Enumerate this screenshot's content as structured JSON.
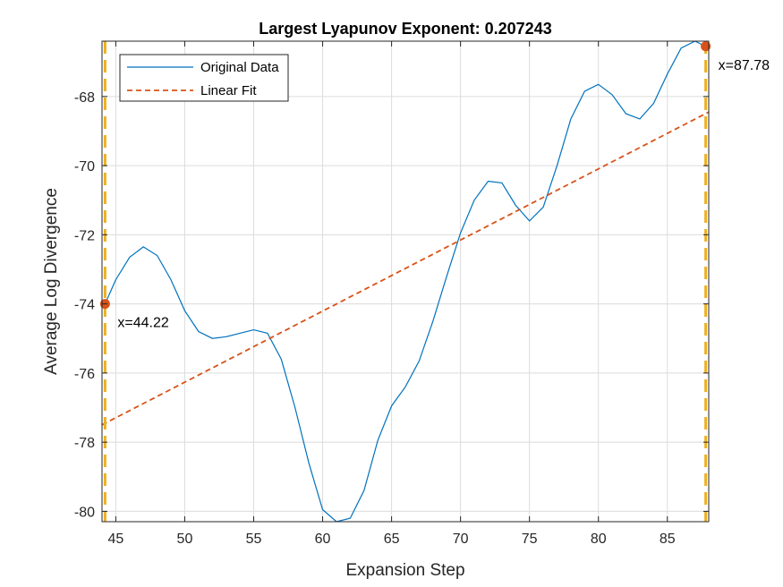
{
  "chart_data": {
    "type": "line",
    "title": "Largest Lyapunov Exponent: 0.207243",
    "xlabel": "Expansion Step",
    "ylabel": "Average Log Divergence",
    "xlim": [
      44,
      88
    ],
    "ylim": [
      -80.3,
      -66.4
    ],
    "xticks": [
      45,
      50,
      55,
      60,
      65,
      70,
      75,
      80,
      85
    ],
    "yticks": [
      -68,
      -70,
      -72,
      -74,
      -76,
      -78,
      -80
    ],
    "grid": true,
    "legend_position": "top-left",
    "series": [
      {
        "name": "Original Data",
        "color": "#0072BD",
        "style": "solid",
        "x": [
          44.22,
          45,
          46,
          47,
          48,
          49,
          50,
          51,
          52,
          53,
          54,
          55,
          56,
          57,
          58,
          59,
          60,
          61,
          62,
          63,
          64,
          65,
          66,
          67,
          68,
          69,
          70,
          71,
          72,
          73,
          74,
          75,
          76,
          77,
          78,
          79,
          80,
          81,
          82,
          83,
          84,
          85,
          86,
          87,
          87.78
        ],
        "y": [
          -74.0,
          -73.3,
          -72.65,
          -72.35,
          -72.6,
          -73.3,
          -74.2,
          -74.8,
          -75.0,
          -74.95,
          -74.85,
          -74.75,
          -74.85,
          -75.6,
          -77.0,
          -78.6,
          -79.95,
          -80.3,
          -80.2,
          -79.4,
          -77.95,
          -76.95,
          -76.4,
          -75.65,
          -74.5,
          -73.2,
          -71.95,
          -71.0,
          -70.45,
          -70.5,
          -71.15,
          -71.6,
          -71.2,
          -70.0,
          -68.65,
          -67.85,
          -67.65,
          -67.95,
          -68.5,
          -68.65,
          -68.2,
          -67.35,
          -66.6,
          -66.4,
          -66.55
        ]
      },
      {
        "name": "Linear Fit",
        "color": "#D95319",
        "style": "dashed",
        "x": [
          44,
          88
        ],
        "y": [
          -77.5,
          -68.45
        ]
      }
    ],
    "vertical_lines": [
      {
        "x": 44.22,
        "color": "#EDB120",
        "style": "dashed"
      },
      {
        "x": 87.78,
        "color": "#EDB120",
        "style": "dashed"
      }
    ],
    "markers": [
      {
        "x": 44.22,
        "y": -74.0,
        "color": "#D95319"
      },
      {
        "x": 87.78,
        "y": -66.55,
        "color": "#D95319"
      }
    ],
    "annotations": [
      {
        "text": "x=44.22",
        "x": 44.22,
        "y": -74.0
      },
      {
        "text": "x=87.78",
        "x": 87.78,
        "y": -66.55
      }
    ]
  }
}
